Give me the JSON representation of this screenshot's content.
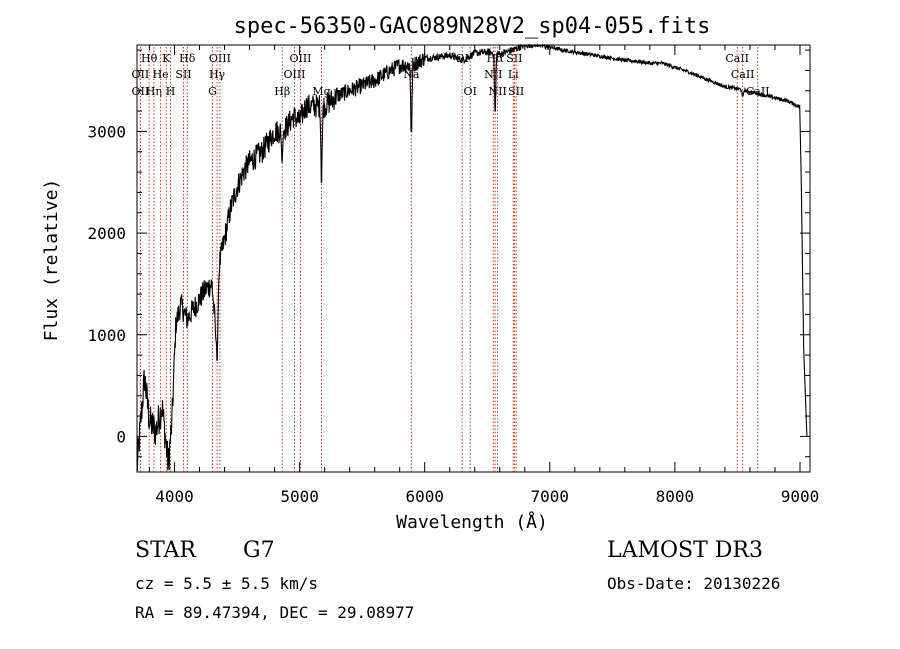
{
  "chart_data": {
    "type": "line",
    "title": "spec-56350-GAC089N28V2_sp04-055.fits",
    "xlabel": "Wavelength (Å)",
    "ylabel": "Flux (relative)",
    "xlim": [
      3700,
      9080
    ],
    "ylim": [
      -350,
      3850
    ],
    "x_ticks": [
      4000,
      5000,
      6000,
      7000,
      8000,
      9000
    ],
    "y_ticks": [
      0,
      1000,
      2000,
      3000
    ],
    "line_color": "#000000",
    "marker_color": "#cc2200",
    "continuum": [
      [
        3700,
        -320
      ],
      [
        3730,
        150
      ],
      [
        3760,
        580
      ],
      [
        3800,
        150
      ],
      [
        3850,
        50
      ],
      [
        3900,
        300
      ],
      [
        3950,
        -280
      ],
      [
        3980,
        150
      ],
      [
        4010,
        1100
      ],
      [
        4050,
        1300
      ],
      [
        4100,
        1150
      ],
      [
        4150,
        1250
      ],
      [
        4200,
        1350
      ],
      [
        4250,
        1450
      ],
      [
        4300,
        1500
      ],
      [
        4330,
        1000
      ],
      [
        4360,
        1700
      ],
      [
        4400,
        1950
      ],
      [
        4450,
        2250
      ],
      [
        4500,
        2450
      ],
      [
        4550,
        2600
      ],
      [
        4600,
        2700
      ],
      [
        4650,
        2750
      ],
      [
        4700,
        2800
      ],
      [
        4750,
        2900
      ],
      [
        4800,
        3000
      ],
      [
        4850,
        3000
      ],
      [
        4900,
        3050
      ],
      [
        4950,
        3150
      ],
      [
        5000,
        3100
      ],
      [
        5050,
        3250
      ],
      [
        5100,
        3250
      ],
      [
        5150,
        3250
      ],
      [
        5200,
        3250
      ],
      [
        5300,
        3350
      ],
      [
        5400,
        3400
      ],
      [
        5500,
        3450
      ],
      [
        5600,
        3500
      ],
      [
        5700,
        3580
      ],
      [
        5800,
        3650
      ],
      [
        5900,
        3650
      ],
      [
        6000,
        3720
      ],
      [
        6100,
        3730
      ],
      [
        6200,
        3750
      ],
      [
        6300,
        3700
      ],
      [
        6400,
        3770
      ],
      [
        6500,
        3780
      ],
      [
        6600,
        3760
      ],
      [
        6700,
        3800
      ],
      [
        6800,
        3850
      ],
      [
        6900,
        3860
      ],
      [
        7000,
        3830
      ],
      [
        7100,
        3800
      ],
      [
        7200,
        3780
      ],
      [
        7300,
        3760
      ],
      [
        7400,
        3740
      ],
      [
        7500,
        3720
      ],
      [
        7600,
        3700
      ],
      [
        7700,
        3690
      ],
      [
        7800,
        3670
      ],
      [
        7900,
        3670
      ],
      [
        8000,
        3630
      ],
      [
        8100,
        3590
      ],
      [
        8200,
        3540
      ],
      [
        8300,
        3490
      ],
      [
        8400,
        3440
      ],
      [
        8500,
        3420
      ],
      [
        8600,
        3390
      ],
      [
        8700,
        3360
      ],
      [
        8800,
        3330
      ],
      [
        8900,
        3300
      ],
      [
        9000,
        3240
      ]
    ],
    "absorption_dips": [
      [
        4340,
        750
      ],
      [
        4860,
        2700
      ],
      [
        5175,
        2500
      ],
      [
        5893,
        3000
      ],
      [
        6563,
        3200
      ],
      [
        8542,
        3350
      ]
    ],
    "end_drop": [
      [
        9010,
        2550
      ],
      [
        9030,
        850
      ],
      [
        9055,
        0
      ]
    ],
    "line_markers": [
      {
        "label": "Hθ",
        "wavelength": 3797,
        "row": 1
      },
      {
        "label": "OII",
        "wavelength": 3727,
        "row": 2
      },
      {
        "label": "OII",
        "wavelength": 3727,
        "row": 3
      },
      {
        "label": "Hη",
        "wavelength": 3835,
        "row": 3
      },
      {
        "label": "He",
        "wavelength": 3889,
        "row": 2
      },
      {
        "label": "K",
        "wavelength": 3934,
        "row": 1
      },
      {
        "label": "H",
        "wavelength": 3968,
        "row": 3
      },
      {
        "label": "SII",
        "wavelength": 4072,
        "row": 2
      },
      {
        "label": "Hδ",
        "wavelength": 4102,
        "row": 1
      },
      {
        "label": "OIII",
        "wavelength": 4363,
        "row": 1
      },
      {
        "label": "Hγ",
        "wavelength": 4340,
        "row": 2
      },
      {
        "label": "G",
        "wavelength": 4304,
        "row": 3
      },
      {
        "label": "Hβ",
        "wavelength": 4861,
        "row": 3
      },
      {
        "label": "OIII",
        "wavelength": 4959,
        "row": 2
      },
      {
        "label": "OIII",
        "wavelength": 5007,
        "row": 1
      },
      {
        "label": "Mg",
        "wavelength": 5175,
        "row": 3
      },
      {
        "label": "Na",
        "wavelength": 5893,
        "row": 2
      },
      {
        "label": "OI",
        "wavelength": 6300,
        "row": 1
      },
      {
        "label": "OI",
        "wavelength": 6364,
        "row": 3
      },
      {
        "label": "Hα",
        "wavelength": 6563,
        "row": 1
      },
      {
        "label": "NII",
        "wavelength": 6548,
        "row": 2
      },
      {
        "label": "NII",
        "wavelength": 6583,
        "row": 3
      },
      {
        "label": "SII",
        "wavelength": 6717,
        "row": 1
      },
      {
        "label": "Li",
        "wavelength": 6708,
        "row": 2
      },
      {
        "label": "SII",
        "wavelength": 6731,
        "row": 3
      },
      {
        "label": "CaII",
        "wavelength": 8498,
        "row": 1
      },
      {
        "label": "CaII",
        "wavelength": 8542,
        "row": 2
      },
      {
        "label": "CaII",
        "wavelength": 8662,
        "row": 3
      }
    ]
  },
  "info": {
    "object_class": "STAR",
    "subclass": "G7",
    "redshift": "cz =  5.5 ± 5.5 km/s",
    "coords": "RA =  89.47394, DEC =  29.08977",
    "survey": "LAMOST DR3",
    "obs_date": "Obs-Date: 20130226"
  }
}
